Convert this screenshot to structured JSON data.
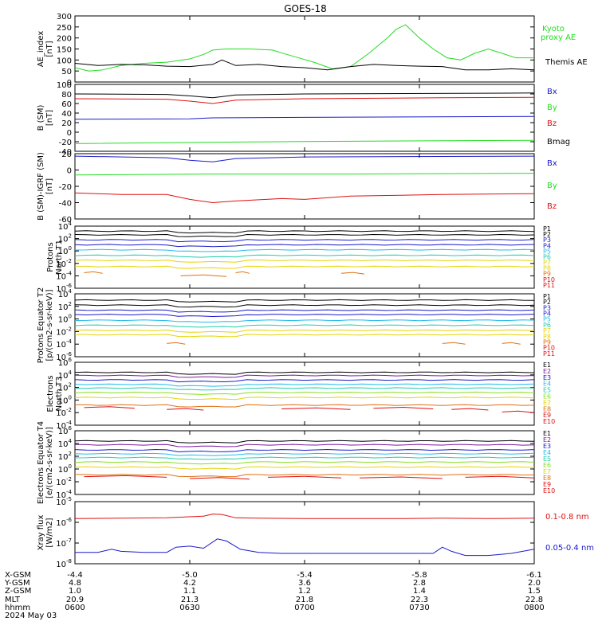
{
  "title": "GOES-18",
  "colors": {
    "black": "#000000",
    "green": "#22dd22",
    "blue": "#1a1acc",
    "red": "#dd1111",
    "p_orange": "#e07010",
    "p_yellow": "#e6d300",
    "p_lime": "#88dd22",
    "p_teal": "#22ccaa",
    "p_cyan": "#22bbee",
    "p_purple": "#7a1aa0"
  },
  "chart_data": [
    {
      "type": "line",
      "ylabel": "AE_index [nT]",
      "ylim": [
        0,
        300
      ],
      "yticks": [
        "0",
        "50",
        "100",
        "150",
        "200",
        "250",
        "300"
      ],
      "legend": [
        "Kyoto",
        "proxy AE",
        "Themis AE"
      ],
      "series": [
        {
          "name": "Kyoto proxy AE",
          "color": "green",
          "x": [
            0,
            0.03,
            0.06,
            0.1,
            0.15,
            0.2,
            0.25,
            0.28,
            0.3,
            0.33,
            0.38,
            0.43,
            0.47,
            0.52,
            0.56,
            0.6,
            0.64,
            0.68,
            0.7,
            0.72,
            0.75,
            0.78,
            0.81,
            0.84,
            0.87,
            0.9,
            0.93,
            0.96,
            1
          ],
          "y": [
            65,
            50,
            55,
            75,
            85,
            90,
            105,
            125,
            145,
            150,
            150,
            145,
            120,
            90,
            60,
            70,
            130,
            200,
            240,
            260,
            200,
            150,
            110,
            100,
            130,
            150,
            130,
            110,
            110
          ]
        },
        {
          "name": "Themis AE",
          "color": "black",
          "x": [
            0,
            0.05,
            0.1,
            0.15,
            0.2,
            0.25,
            0.3,
            0.32,
            0.35,
            0.4,
            0.45,
            0.5,
            0.55,
            0.6,
            0.65,
            0.7,
            0.75,
            0.8,
            0.85,
            0.9,
            0.95,
            1
          ],
          "y": [
            85,
            75,
            80,
            78,
            72,
            70,
            80,
            100,
            75,
            80,
            70,
            65,
            55,
            70,
            80,
            75,
            72,
            70,
            55,
            55,
            60,
            55
          ]
        }
      ]
    },
    {
      "type": "line",
      "ylabel": "B (SM) [nT]",
      "ylim": [
        -40,
        100
      ],
      "yticks": [
        "-40",
        "-20",
        "0",
        "20",
        "40",
        "60",
        "80",
        "100"
      ],
      "legend": [
        "Bx",
        "By",
        "Bz",
        "Bmag"
      ],
      "series": [
        {
          "name": "Bmag",
          "color": "black",
          "x": [
            0,
            0.2,
            0.25,
            0.3,
            0.35,
            0.5,
            1
          ],
          "y": [
            80,
            79,
            76,
            72,
            78,
            80,
            82
          ]
        },
        {
          "name": "Bz",
          "color": "red",
          "x": [
            0,
            0.2,
            0.25,
            0.3,
            0.35,
            0.5,
            0.8,
            1
          ],
          "y": [
            70,
            69,
            65,
            60,
            67,
            70,
            72,
            73
          ]
        },
        {
          "name": "Bx",
          "color": "blue",
          "x": [
            0,
            0.25,
            0.3,
            0.5,
            1
          ],
          "y": [
            27,
            28,
            30,
            31,
            33
          ]
        },
        {
          "name": "By",
          "color": "green",
          "x": [
            0,
            0.3,
            0.6,
            1
          ],
          "y": [
            -24,
            -21,
            -19,
            -17
          ]
        }
      ]
    },
    {
      "type": "line",
      "ylabel": "B (SM)-IGRF (SM) [nT]",
      "ylim": [
        -60,
        20
      ],
      "yticks": [
        "-60",
        "-40",
        "-20",
        "0",
        "20"
      ],
      "legend": [
        "Bx",
        "By",
        "Bz"
      ],
      "series": [
        {
          "name": "Bx",
          "color": "blue",
          "x": [
            0,
            0.2,
            0.25,
            0.3,
            0.35,
            0.5,
            1
          ],
          "y": [
            17,
            15,
            12,
            10,
            14,
            16,
            17
          ]
        },
        {
          "name": "By",
          "color": "green",
          "x": [
            0,
            0.3,
            0.6,
            1
          ],
          "y": [
            -6,
            -5,
            -5,
            -4
          ]
        },
        {
          "name": "Bz",
          "color": "red",
          "x": [
            0,
            0.1,
            0.2,
            0.25,
            0.3,
            0.35,
            0.45,
            0.5,
            0.6,
            0.8,
            1
          ],
          "y": [
            -28,
            -30,
            -30,
            -36,
            -40,
            -38,
            -35,
            -36,
            -32,
            -30,
            -29
          ]
        }
      ]
    },
    {
      "type": "line",
      "log": true,
      "ylabel": "Protons North T1",
      "ylim": [
        -6,
        4
      ],
      "yticks": [
        "10^-6",
        "10^-4",
        "10^-2",
        "10^0",
        "10^2",
        "10^4"
      ],
      "legend": [
        "P1",
        "P2",
        "P3",
        "P4",
        "P5",
        "P6",
        "P7",
        "P8",
        "P9",
        "P10",
        "P11"
      ],
      "legend_colors": [
        "black",
        "black",
        "blue",
        "blue",
        "p_cyan",
        "p_teal",
        "p_yellow",
        "p_yellow",
        "p_orange",
        "red",
        "red"
      ],
      "series": [
        {
          "name": "P1",
          "color": "black",
          "levels": [
            3.2
          ]
        },
        {
          "name": "P2",
          "color": "black",
          "levels": [
            2.6
          ]
        },
        {
          "name": "P3",
          "color": "blue",
          "levels": [
            1.8
          ]
        },
        {
          "name": "P4",
          "color": "blue",
          "levels": [
            1.0
          ]
        },
        {
          "name": "P5",
          "color": "p_cyan",
          "levels": [
            0.2
          ]
        },
        {
          "name": "P6",
          "color": "p_teal",
          "levels": [
            -0.7
          ]
        },
        {
          "name": "P7",
          "color": "p_yellow",
          "levels": [
            -1.5
          ]
        },
        {
          "name": "P8",
          "color": "p_yellow",
          "levels": [
            -2.5
          ]
        },
        {
          "name": "P9",
          "color": "p_orange",
          "segments": [
            [
              0.02,
              0.06,
              -3.5
            ],
            [
              0.23,
              0.33,
              -4.0
            ],
            [
              0.35,
              0.38,
              -3.5
            ],
            [
              0.58,
              0.63,
              -3.6
            ]
          ]
        }
      ]
    },
    {
      "type": "line",
      "log": true,
      "ylabel": "Protons Equator T2 [p/(cm2-s-sr-keV)]",
      "ylim": [
        -6,
        4
      ],
      "yticks": [
        "10^-6",
        "10^-4",
        "10^-2",
        "10^0",
        "10^2",
        "10^4"
      ],
      "legend": [
        "P1",
        "P2",
        "P3",
        "P4",
        "P5",
        "P6",
        "P7",
        "P8",
        "P9",
        "P10",
        "P11"
      ],
      "legend_colors": [
        "black",
        "black",
        "blue",
        "blue",
        "p_cyan",
        "p_teal",
        "p_yellow",
        "p_yellow",
        "p_orange",
        "red",
        "red"
      ],
      "series": [
        {
          "name": "P1",
          "color": "black",
          "levels": [
            3.0
          ]
        },
        {
          "name": "P2",
          "color": "black",
          "levels": [
            2.2
          ]
        },
        {
          "name": "P3",
          "color": "blue",
          "levels": [
            1.4
          ]
        },
        {
          "name": "P4",
          "color": "blue",
          "levels": [
            0.7
          ]
        },
        {
          "name": "P5",
          "color": "p_cyan",
          "levels": [
            -0.2
          ]
        },
        {
          "name": "P6",
          "color": "p_teal",
          "levels": [
            -1.0
          ]
        },
        {
          "name": "P7",
          "color": "p_yellow",
          "levels": [
            -1.8
          ]
        },
        {
          "name": "P8",
          "color": "p_yellow",
          "levels": [
            -2.5
          ]
        },
        {
          "name": "P9",
          "color": "p_orange",
          "segments": [
            [
              0.2,
              0.24,
              -3.9
            ],
            [
              0.8,
              0.85,
              -3.9
            ],
            [
              0.93,
              0.97,
              -3.9
            ]
          ]
        }
      ]
    },
    {
      "type": "line",
      "log": true,
      "ylabel": "Electrons North T3",
      "ylim": [
        -4,
        6
      ],
      "yticks": [
        "10^-4",
        "10^-2",
        "10^0",
        "10^2",
        "10^4",
        "10^6"
      ],
      "legend": [
        "E1",
        "E2",
        "E3",
        "E4",
        "E5",
        "E6",
        "E7",
        "E8",
        "E9",
        "E10"
      ],
      "legend_colors": [
        "black",
        "purple",
        "blue",
        "p_cyan",
        "p_teal",
        "p_lime",
        "p_yellow",
        "p_orange",
        "red",
        "red"
      ],
      "series": [
        {
          "name": "E1",
          "color": "black",
          "levels": [
            4.4
          ]
        },
        {
          "name": "E2",
          "color": "p_purple",
          "levels": [
            3.9
          ]
        },
        {
          "name": "E3",
          "color": "blue",
          "levels": [
            3.2
          ]
        },
        {
          "name": "E4",
          "color": "p_cyan",
          "levels": [
            2.5
          ]
        },
        {
          "name": "E5",
          "color": "p_teal",
          "levels": [
            1.9
          ]
        },
        {
          "name": "E6",
          "color": "p_lime",
          "levels": [
            1.2
          ]
        },
        {
          "name": "E7",
          "color": "p_yellow",
          "levels": [
            0.4
          ]
        },
        {
          "name": "E8",
          "color": "p_orange",
          "levels": [
            -0.8
          ]
        },
        {
          "name": "E9",
          "color": "red",
          "segments": [
            [
              0.02,
              0.13,
              -1.2
            ],
            [
              0.2,
              0.28,
              -1.5
            ],
            [
              0.45,
              0.6,
              -1.4
            ],
            [
              0.65,
              0.78,
              -1.3
            ],
            [
              0.82,
              0.9,
              -1.5
            ],
            [
              0.93,
              1.0,
              -1.9
            ]
          ]
        }
      ]
    },
    {
      "type": "line",
      "log": true,
      "ylabel": "Electrons Equator T4 [e/(cm2-s-sr-keV)]",
      "ylim": [
        -4,
        6
      ],
      "yticks": [
        "10^-4",
        "10^-2",
        "10^0",
        "10^2",
        "10^4",
        "10^6"
      ],
      "legend": [
        "E1",
        "E2",
        "E3",
        "E4",
        "E5",
        "E6",
        "E7",
        "E8",
        "E9",
        "E10"
      ],
      "legend_colors": [
        "black",
        "purple",
        "blue",
        "p_cyan",
        "p_teal",
        "p_lime",
        "p_yellow",
        "p_orange",
        "red",
        "red"
      ],
      "series": [
        {
          "name": "E1",
          "color": "black",
          "levels": [
            4.4
          ]
        },
        {
          "name": "E2",
          "color": "p_purple",
          "levels": [
            3.8
          ]
        },
        {
          "name": "E3",
          "color": "blue",
          "levels": [
            3.0
          ]
        },
        {
          "name": "E4",
          "color": "p_cyan",
          "levels": [
            2.4
          ]
        },
        {
          "name": "E5",
          "color": "p_teal",
          "levels": [
            1.8
          ]
        },
        {
          "name": "E6",
          "color": "p_lime",
          "levels": [
            1.1
          ]
        },
        {
          "name": "E7",
          "color": "p_yellow",
          "levels": [
            0.3
          ]
        },
        {
          "name": "E8",
          "color": "p_orange",
          "levels": [
            -0.9
          ]
        },
        {
          "name": "E9",
          "color": "red",
          "segments": [
            [
              0.02,
              0.2,
              -1.2
            ],
            [
              0.25,
              0.38,
              -1.5
            ],
            [
              0.42,
              0.58,
              -1.3
            ],
            [
              0.62,
              0.8,
              -1.4
            ],
            [
              0.85,
              1.0,
              -1.3
            ]
          ]
        }
      ]
    },
    {
      "type": "line",
      "log": true,
      "ylabel": "Xray flux [W/m2]",
      "ylim": [
        -8,
        -5
      ],
      "yticks": [
        "10^-8",
        "10^-7",
        "10^-6",
        "10^-5"
      ],
      "legend": [
        "0.1-0.8 nm",
        "0.05-0.4 nm"
      ],
      "series": [
        {
          "name": "0.1-0.8 nm",
          "color": "red",
          "x": [
            0,
            0.2,
            0.28,
            0.3,
            0.32,
            0.35,
            0.4,
            0.5,
            0.7,
            0.8,
            0.9,
            1
          ],
          "y": [
            -5.82,
            -5.78,
            -5.7,
            -5.6,
            -5.62,
            -5.78,
            -5.8,
            -5.82,
            -5.82,
            -5.8,
            -5.82,
            -5.8
          ]
        },
        {
          "name": "0.05-0.4 nm",
          "color": "blue",
          "x": [
            0,
            0.05,
            0.08,
            0.1,
            0.15,
            0.2,
            0.22,
            0.25,
            0.28,
            0.31,
            0.33,
            0.36,
            0.4,
            0.45,
            0.5,
            0.6,
            0.7,
            0.78,
            0.8,
            0.82,
            0.85,
            0.9,
            0.95,
            1
          ],
          "y": [
            -7.45,
            -7.45,
            -7.3,
            -7.4,
            -7.45,
            -7.45,
            -7.2,
            -7.15,
            -7.25,
            -6.8,
            -6.9,
            -7.3,
            -7.45,
            -7.5,
            -7.5,
            -7.5,
            -7.5,
            -7.5,
            -7.2,
            -7.4,
            -7.6,
            -7.6,
            -7.5,
            -7.3
          ]
        }
      ]
    }
  ],
  "x_axis": {
    "labels": [
      "X-GSM",
      "Y-GSM",
      "Z-GSM",
      "MLT",
      "hhmm",
      "2024 May 03"
    ],
    "ticks": [
      {
        "pos": 0.0,
        "values": [
          "-4.4",
          "4.8",
          "1.0",
          "20.9",
          "0600"
        ]
      },
      {
        "pos": 0.25,
        "values": [
          "-5.0",
          "4.2",
          "1.1",
          "21.3",
          "0630"
        ]
      },
      {
        "pos": 0.5,
        "values": [
          "-5.4",
          "3.6",
          "1.2",
          "21.8",
          "0700"
        ]
      },
      {
        "pos": 0.75,
        "values": [
          "-5.8",
          "2.8",
          "1.4",
          "22.3",
          "0730"
        ]
      },
      {
        "pos": 1.0,
        "values": [
          "-6.1",
          "2.0",
          "1.5",
          "22.8",
          "0800"
        ]
      }
    ]
  }
}
